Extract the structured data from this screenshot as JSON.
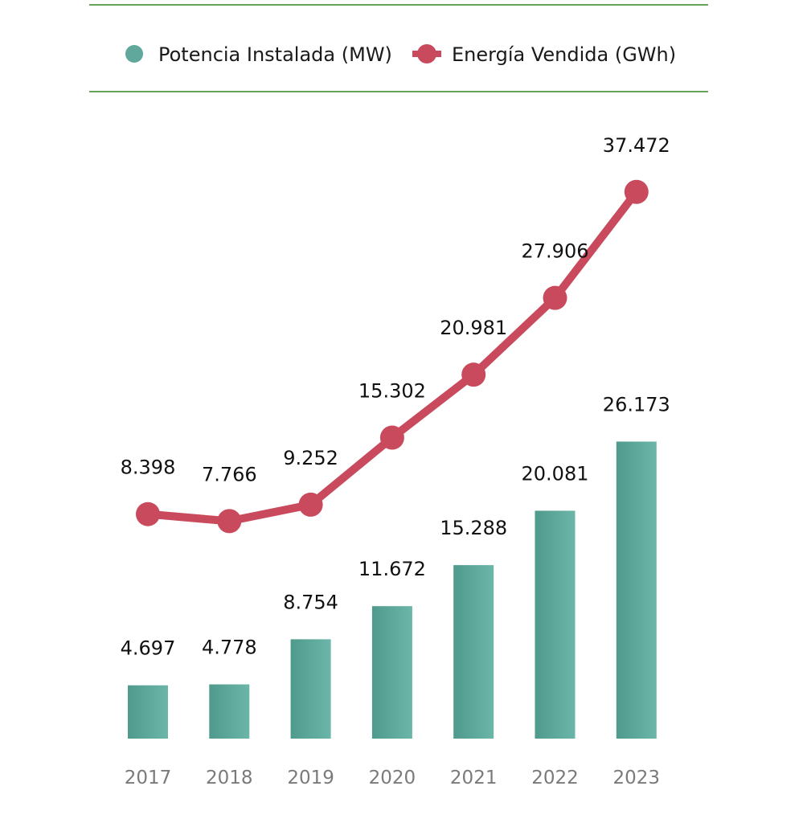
{
  "chart_data": {
    "type": "bar",
    "title": "",
    "xlabel": "",
    "ylabel": "",
    "categories": [
      "2017",
      "2018",
      "2019",
      "2020",
      "2021",
      "2022",
      "2023"
    ],
    "series": [
      {
        "name": "Potencia Instalada (MW)",
        "type": "bar",
        "color": "#5fa89b",
        "values": [
          4697,
          4778,
          8754,
          11672,
          15288,
          20081,
          26173
        ],
        "labels": [
          "4.697",
          "4.778",
          "8.754",
          "11.672",
          "15.288",
          "20.081",
          "26.173"
        ]
      },
      {
        "name": "Energía Vendida (GWh)",
        "type": "line",
        "color": "#c94a5c",
        "values": [
          8398,
          7766,
          9252,
          15302,
          20981,
          27906,
          37472
        ],
        "labels": [
          "8.398",
          "7.766",
          "9.252",
          "15.302",
          "20.981",
          "27.906",
          "37.472"
        ]
      }
    ],
    "legend_position": "top",
    "grid": false,
    "divider_color": "#6aa15a"
  }
}
